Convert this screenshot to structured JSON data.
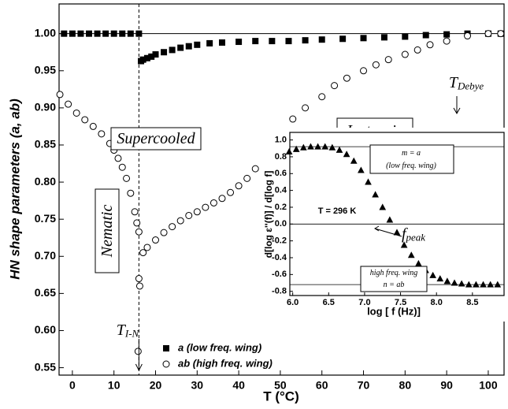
{
  "chart_data": [
    {
      "type": "scatter",
      "xlabel": "T (°C)",
      "ylabel": "HN shape parameters (a, ab)",
      "xlim": [
        -3.2,
        103.8
      ],
      "ylim": [
        0.54,
        1.04
      ],
      "xticks": [
        0,
        10,
        20,
        30,
        40,
        50,
        60,
        70,
        80,
        90,
        100
      ],
      "yticks": [
        0.55,
        {
          "value": 0.6,
          "label": "0.60"
        },
        0.65,
        {
          "value": 0.7,
          "label": "0.70"
        },
        0.75,
        {
          "value": 0.8,
          "label": "0.80"
        },
        0.85,
        {
          "value": 0.9,
          "label": "0.90"
        },
        0.95,
        {
          "value": 1.0,
          "label": "1.00"
        }
      ],
      "hline": 1.0,
      "vline": 16,
      "series": [
        {
          "name": "a (low freq. wing)",
          "color": "#000000",
          "marker": "square",
          "x": [
            -2,
            0,
            2,
            4,
            6,
            8,
            10,
            12,
            14,
            16,
            16.5,
            17,
            18,
            19,
            20,
            22,
            24,
            26,
            28,
            30,
            33,
            36,
            40,
            44,
            48,
            52,
            56,
            60,
            65,
            70,
            75,
            80,
            85,
            90,
            95,
            100,
            103
          ],
          "values": [
            1.0,
            1.0,
            1.0,
            1.0,
            1.0,
            1.0,
            1.0,
            1.0,
            1.0,
            1.0,
            0.963,
            0.965,
            0.967,
            0.969,
            0.972,
            0.975,
            0.978,
            0.981,
            0.983,
            0.985,
            0.987,
            0.988,
            0.989,
            0.99,
            0.99,
            0.99,
            0.991,
            0.992,
            0.993,
            0.994,
            0.995,
            0.996,
            0.998,
            0.999,
            1.0,
            1.0,
            1.0
          ]
        },
        {
          "name": "ab (high freq. wing)",
          "color": "#000000",
          "marker": "circle",
          "x": [
            -3,
            -1,
            1,
            3,
            5,
            7,
            9,
            10,
            11,
            12,
            13,
            14,
            15,
            15.5,
            16,
            16,
            16.2,
            15.8,
            17,
            18,
            20,
            22,
            24,
            26,
            28,
            30,
            32,
            34,
            36,
            38,
            40,
            42,
            44,
            46,
            48,
            50,
            53,
            56,
            60,
            63,
            66,
            70,
            73,
            76,
            80,
            83,
            86,
            90,
            95,
            100,
            103
          ],
          "values": [
            0.918,
            0.905,
            0.893,
            0.884,
            0.875,
            0.865,
            0.852,
            0.843,
            0.832,
            0.82,
            0.805,
            0.785,
            0.76,
            0.745,
            0.733,
            0.67,
            0.66,
            0.572,
            0.705,
            0.712,
            0.722,
            0.732,
            0.74,
            0.748,
            0.755,
            0.76,
            0.766,
            0.772,
            0.778,
            0.786,
            0.795,
            0.805,
            0.818,
            0.832,
            0.85,
            0.868,
            0.885,
            0.9,
            0.915,
            0.93,
            0.94,
            0.95,
            0.958,
            0.965,
            0.972,
            0.978,
            0.985,
            0.99,
            0.997,
            1.0,
            1.0
          ]
        }
      ],
      "annotations": [
        {
          "text": "Supercooled"
        },
        {
          "text": "Isotropic"
        },
        {
          "text": "Nematic"
        },
        {
          "text": "T",
          "sub": "I-N"
        },
        {
          "text": "T",
          "sub": "Debye"
        }
      ]
    },
    {
      "type": "scatter",
      "xlabel": "log [ f (Hz)]",
      "ylabel": "d[log ε''(f)] / d[log f]",
      "xlim": [
        5.96,
        8.94
      ],
      "ylim": [
        -0.85,
        1.09
      ],
      "xticks": [
        {
          "value": 6,
          "label": "6.0"
        },
        6.5,
        {
          "value": 7,
          "label": "7.0"
        },
        7.5,
        {
          "value": 8,
          "label": "8.0"
        },
        8.5
      ],
      "yticks": [
        -0.8,
        -0.6,
        -0.4,
        -0.2,
        {
          "value": 0,
          "label": "0.0"
        },
        0.2,
        0.4,
        0.6,
        0.8,
        {
          "value": 1,
          "label": "1.0"
        }
      ],
      "hlines": [
        0.92,
        0,
        -0.72
      ],
      "series": [
        {
          "color": "#000000",
          "marker": "triangle",
          "x": [
            5.95,
            6.05,
            6.15,
            6.25,
            6.35,
            6.45,
            6.55,
            6.65,
            6.75,
            6.85,
            6.95,
            7.05,
            7.15,
            7.25,
            7.35,
            7.45,
            7.55,
            7.65,
            7.75,
            7.85,
            7.95,
            8.05,
            8.15,
            8.25,
            8.35,
            8.45,
            8.55,
            8.65,
            8.75,
            8.85
          ],
          "values": [
            0.86,
            0.89,
            0.91,
            0.92,
            0.92,
            0.92,
            0.91,
            0.88,
            0.83,
            0.75,
            0.64,
            0.5,
            0.35,
            0.2,
            0.05,
            -0.1,
            -0.25,
            -0.37,
            -0.47,
            -0.55,
            -0.61,
            -0.65,
            -0.68,
            -0.7,
            -0.71,
            -0.72,
            -0.72,
            -0.72,
            -0.72,
            -0.72
          ]
        }
      ],
      "annotations": [
        {
          "text": "m = a"
        },
        {
          "text": "(low freq. wing)"
        },
        {
          "text": "T = 296 K"
        },
        {
          "text": "f",
          "sub": "peak"
        },
        {
          "text": "high freq. wing"
        },
        {
          "text": "n = ab"
        }
      ]
    }
  ]
}
